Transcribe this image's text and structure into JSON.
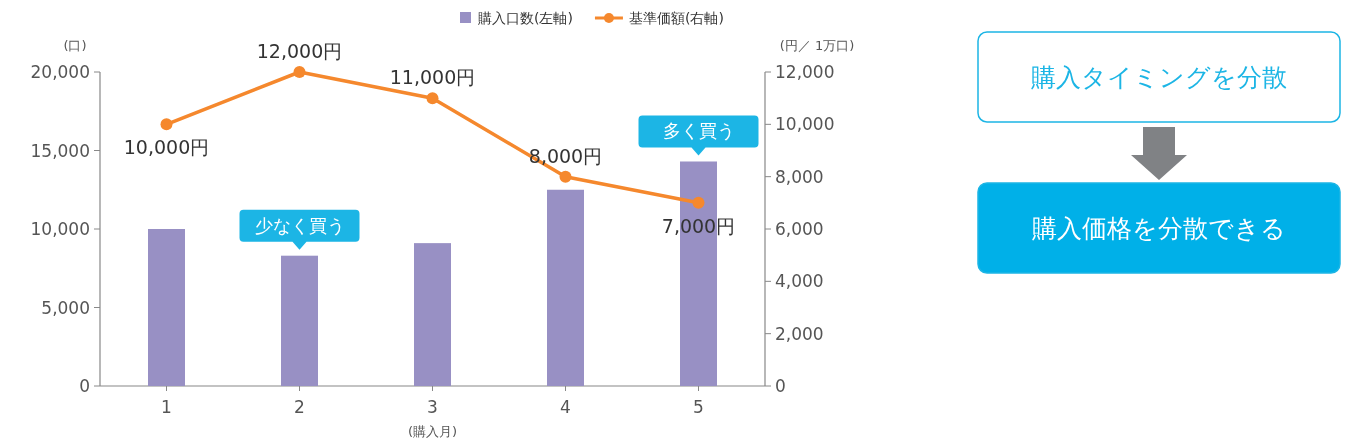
{
  "chart_data": [
    {
      "type": "bar",
      "categories": [
        "1",
        "2",
        "3",
        "4",
        "5"
      ],
      "series": [
        {
          "name": "購入口数(左軸)",
          "type": "bar",
          "color": "#9890c4",
          "values": [
            10000,
            8300,
            9100,
            12500,
            14300
          ]
        },
        {
          "name": "基準価額(右軸)",
          "type": "line",
          "axis": "y2",
          "color": "#f5882d",
          "marker": "circle",
          "line_style": "solid",
          "values": [
            10000,
            12000,
            11000,
            8000,
            7000
          ],
          "value_labels": [
            "10,000円",
            "12,000円",
            "11,000円",
            "8,000円",
            "7,000円"
          ]
        }
      ],
      "xlabel": "(購入月)",
      "ylabel": "(口)",
      "y2label": "(円／ 1万口)",
      "ylim": [
        0,
        20000
      ],
      "yticks": [
        0,
        {
          "value": 5000,
          "label": "5,000"
        },
        {
          "value": 10000,
          "label": "10,000"
        },
        {
          "value": 15000,
          "label": "15,000"
        },
        {
          "value": 20000,
          "label": "20,000"
        }
      ],
      "y2lim": [
        0,
        12000
      ],
      "y2ticks": [
        0,
        {
          "value": 2000,
          "label": "2,000"
        },
        {
          "value": 4000,
          "label": "4,000"
        },
        {
          "value": 6000,
          "label": "6,000"
        },
        {
          "value": 8000,
          "label": "8,000"
        },
        {
          "value": 10000,
          "label": "10,000"
        },
        {
          "value": 12000,
          "label": "12,000"
        }
      ],
      "annotations": [
        {
          "text": "少なく買う",
          "x": "2",
          "y": 8300
        },
        {
          "text": "多く買う",
          "x": "5",
          "y": 14300
        }
      ],
      "legend": "top",
      "grid": false
    },
    {
      "type": "other",
      "annotations": [
        "購入タイミングを分散",
        "購入価格を分散できる"
      ]
    }
  ]
}
